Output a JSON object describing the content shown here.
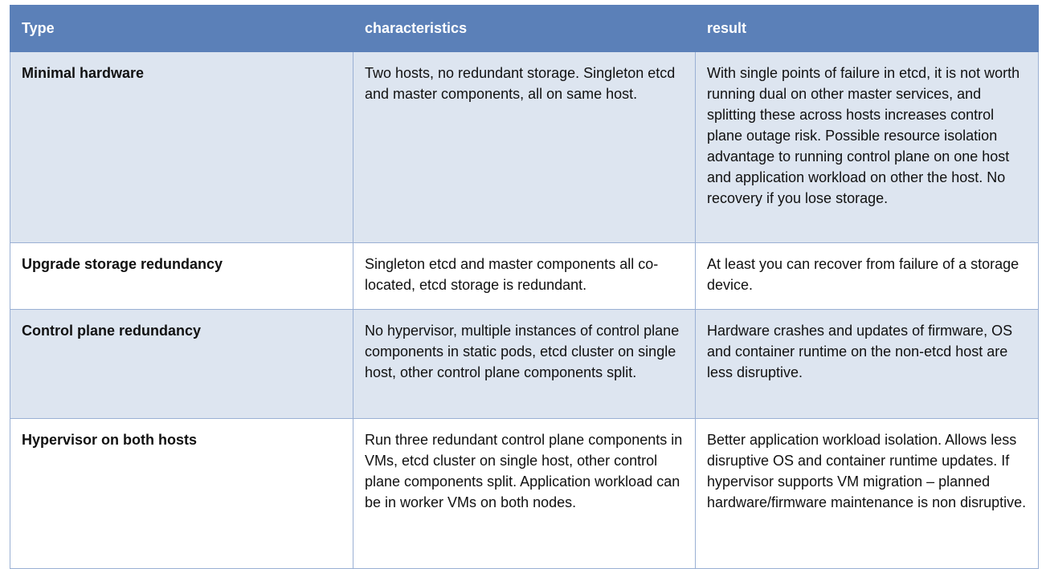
{
  "header": {
    "type": "Type",
    "characteristics": "characteristics",
    "result": "result"
  },
  "colors": {
    "header_bg": "#5b80b8",
    "row_alt_bg": "#dde5f0",
    "border": "#9ab0d4"
  },
  "rows": [
    {
      "type": "Minimal hardware",
      "characteristics": "Two hosts, no redundant storage. Singleton etcd and master components, all on same host.",
      "result": "With single points of failure in etcd, it is not worth running dual on other master services, and splitting these across hosts increases control plane outage risk. Possible resource isolation advantage to running control plane on one host and application workload on other the host. No recovery if you lose storage."
    },
    {
      "type": "Upgrade storage redundancy",
      "characteristics": "Singleton etcd and master components all co-located, etcd storage is redundant.",
      "result": "At least you can recover from failure of a storage device."
    },
    {
      "type": "Control plane redundancy",
      "characteristics": "No hypervisor, multiple instances of control plane components in static pods, etcd cluster on single host, other control plane components split.",
      "result": "Hardware crashes and updates of firmware, OS and container runtime on the non-etcd host are less disruptive."
    },
    {
      "type": "Hypervisor on both hosts",
      "characteristics": "Run three redundant control plane components in VMs, etcd cluster on single host, other control plane components split. Application workload can be in worker VMs on both nodes.",
      "result": "Better application workload isolation. Allows less disruptive OS and container runtime updates. If hypervisor supports VM migration – planned hardware/firmware maintenance is non disruptive."
    }
  ]
}
